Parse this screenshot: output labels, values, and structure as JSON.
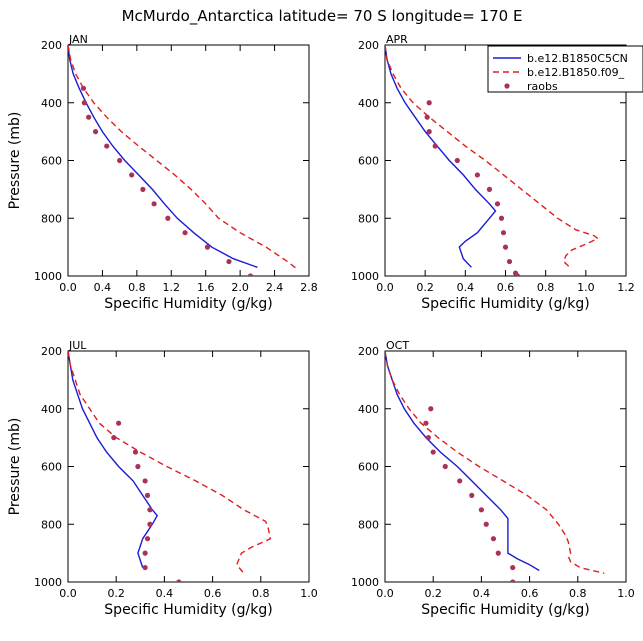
{
  "title": "McMurdo_Antarctica  latitude= 70 S longitude= 170 E",
  "colors": {
    "model1": "#1b1bd6",
    "model2": "#e01e1e",
    "obs": "#a8325a"
  },
  "legend": [
    "b.e12.B1850C5CN",
    "b.e12.B1850.f09_",
    "raobs"
  ],
  "chart_data": [
    {
      "type": "line",
      "month": "JAN",
      "xlabel": "Specific Humidity (g/kg)",
      "ylabel": "Pressure (mb)",
      "xlim": [
        0,
        2.8
      ],
      "ylim": [
        1000,
        200
      ],
      "xticks": [
        "0.0",
        "0.4",
        "0.8",
        "1.2",
        "1.6",
        "2.0",
        "2.4",
        "2.8"
      ],
      "yticks": [
        "200",
        "400",
        "600",
        "800",
        "1000"
      ],
      "series": [
        {
          "name": "b.e12.B1850C5CN",
          "points": [
            [
              0.0,
              200
            ],
            [
              0.02,
              250
            ],
            [
              0.06,
              300
            ],
            [
              0.13,
              350
            ],
            [
              0.21,
              400
            ],
            [
              0.3,
              450
            ],
            [
              0.4,
              500
            ],
            [
              0.52,
              550
            ],
            [
              0.66,
              600
            ],
            [
              0.82,
              650
            ],
            [
              0.98,
              700
            ],
            [
              1.12,
              750
            ],
            [
              1.27,
              800
            ],
            [
              1.46,
              850
            ],
            [
              1.67,
              900
            ],
            [
              1.92,
              940
            ],
            [
              2.2,
              970
            ]
          ]
        },
        {
          "name": "b.e12.B1850.f09_",
          "points": [
            [
              0.0,
              200
            ],
            [
              0.03,
              250
            ],
            [
              0.09,
              300
            ],
            [
              0.18,
              350
            ],
            [
              0.3,
              400
            ],
            [
              0.45,
              450
            ],
            [
              0.62,
              500
            ],
            [
              0.82,
              550
            ],
            [
              1.03,
              600
            ],
            [
              1.24,
              650
            ],
            [
              1.43,
              700
            ],
            [
              1.6,
              750
            ],
            [
              1.75,
              800
            ],
            [
              2.0,
              850
            ],
            [
              2.3,
              900
            ],
            [
              2.55,
              950
            ],
            [
              2.68,
              980
            ]
          ]
        },
        {
          "name": "raobs",
          "points": [
            [
              0.18,
              350
            ],
            [
              0.19,
              400
            ],
            [
              0.24,
              450
            ],
            [
              0.32,
              500
            ],
            [
              0.45,
              550
            ],
            [
              0.6,
              600
            ],
            [
              0.74,
              650
            ],
            [
              0.87,
              700
            ],
            [
              1.0,
              750
            ],
            [
              1.16,
              800
            ],
            [
              1.36,
              850
            ],
            [
              1.62,
              900
            ],
            [
              1.87,
              950
            ],
            [
              2.12,
              1000
            ]
          ]
        }
      ]
    },
    {
      "type": "line",
      "month": "APR",
      "xlabel": "Specific Humidity (g/kg)",
      "ylabel": "",
      "xlim": [
        0,
        1.2
      ],
      "ylim": [
        1000,
        200
      ],
      "xticks": [
        "0.0",
        "0.2",
        "0.4",
        "0.6",
        "0.8",
        "1.0",
        "1.2"
      ],
      "yticks": [
        "200",
        "400",
        "600",
        "800",
        "1000"
      ],
      "series": [
        {
          "name": "b.e12.B1850C5CN",
          "points": [
            [
              0.0,
              200
            ],
            [
              0.01,
              250
            ],
            [
              0.03,
              300
            ],
            [
              0.06,
              350
            ],
            [
              0.1,
              400
            ],
            [
              0.15,
              450
            ],
            [
              0.2,
              500
            ],
            [
              0.26,
              550
            ],
            [
              0.32,
              600
            ],
            [
              0.39,
              650
            ],
            [
              0.45,
              700
            ],
            [
              0.52,
              750
            ],
            [
              0.55,
              775
            ],
            [
              0.52,
              800
            ],
            [
              0.46,
              850
            ],
            [
              0.4,
              880
            ],
            [
              0.37,
              900
            ],
            [
              0.39,
              940
            ],
            [
              0.43,
              970
            ]
          ]
        },
        {
          "name": "b.e12.B1850.f09_",
          "points": [
            [
              0.0,
              200
            ],
            [
              0.01,
              250
            ],
            [
              0.04,
              300
            ],
            [
              0.08,
              350
            ],
            [
              0.14,
              400
            ],
            [
              0.22,
              450
            ],
            [
              0.31,
              500
            ],
            [
              0.4,
              550
            ],
            [
              0.5,
              600
            ],
            [
              0.59,
              650
            ],
            [
              0.68,
              700
            ],
            [
              0.77,
              750
            ],
            [
              0.86,
              800
            ],
            [
              0.95,
              840
            ],
            [
              1.04,
              860
            ],
            [
              1.06,
              870
            ],
            [
              1.0,
              890
            ],
            [
              0.93,
              910
            ],
            [
              0.9,
              930
            ],
            [
              0.89,
              950
            ],
            [
              0.92,
              970
            ]
          ]
        },
        {
          "name": "raobs",
          "points": [
            [
              0.22,
              400
            ],
            [
              0.21,
              450
            ],
            [
              0.22,
              500
            ],
            [
              0.25,
              550
            ],
            [
              0.36,
              600
            ],
            [
              0.46,
              650
            ],
            [
              0.52,
              700
            ],
            [
              0.56,
              750
            ],
            [
              0.58,
              800
            ],
            [
              0.59,
              850
            ],
            [
              0.6,
              900
            ],
            [
              0.62,
              950
            ],
            [
              0.65,
              990
            ],
            [
              0.66,
              1000
            ]
          ]
        }
      ]
    },
    {
      "type": "line",
      "month": "JUL",
      "xlabel": "Specific Humidity (g/kg)",
      "ylabel": "Pressure (mb)",
      "xlim": [
        0,
        1.0
      ],
      "ylim": [
        1000,
        200
      ],
      "xticks": [
        "0.0",
        "0.2",
        "0.4",
        "0.6",
        "0.8",
        "1.0"
      ],
      "yticks": [
        "200",
        "400",
        "600",
        "800",
        "1000"
      ],
      "series": [
        {
          "name": "b.e12.B1850C5CN",
          "points": [
            [
              0.0,
              200
            ],
            [
              0.01,
              250
            ],
            [
              0.02,
              300
            ],
            [
              0.04,
              350
            ],
            [
              0.06,
              400
            ],
            [
              0.09,
              450
            ],
            [
              0.12,
              500
            ],
            [
              0.16,
              550
            ],
            [
              0.21,
              600
            ],
            [
              0.27,
              650
            ],
            [
              0.31,
              700
            ],
            [
              0.35,
              750
            ],
            [
              0.37,
              770
            ],
            [
              0.35,
              800
            ],
            [
              0.31,
              850
            ],
            [
              0.29,
              900
            ],
            [
              0.31,
              950
            ]
          ]
        },
        {
          "name": "b.e12.B1850.f09_",
          "points": [
            [
              0.0,
              200
            ],
            [
              0.01,
              250
            ],
            [
              0.03,
              300
            ],
            [
              0.05,
              350
            ],
            [
              0.09,
              400
            ],
            [
              0.13,
              450
            ],
            [
              0.2,
              500
            ],
            [
              0.3,
              550
            ],
            [
              0.41,
              600
            ],
            [
              0.53,
              650
            ],
            [
              0.64,
              700
            ],
            [
              0.73,
              750
            ],
            [
              0.82,
              790
            ],
            [
              0.83,
              810
            ],
            [
              0.84,
              850
            ],
            [
              0.76,
              880
            ],
            [
              0.72,
              900
            ],
            [
              0.7,
              940
            ],
            [
              0.72,
              960
            ],
            [
              0.73,
              970
            ]
          ]
        },
        {
          "name": "raobs",
          "points": [
            [
              0.21,
              450
            ],
            [
              0.19,
              500
            ],
            [
              0.28,
              550
            ],
            [
              0.29,
              600
            ],
            [
              0.32,
              650
            ],
            [
              0.33,
              700
            ],
            [
              0.34,
              750
            ],
            [
              0.34,
              800
            ],
            [
              0.33,
              850
            ],
            [
              0.32,
              900
            ],
            [
              0.32,
              950
            ],
            [
              0.46,
              1000
            ]
          ]
        }
      ]
    },
    {
      "type": "line",
      "month": "OCT",
      "xlabel": "Specific Humidity (g/kg)",
      "ylabel": "",
      "xlim": [
        0,
        1.0
      ],
      "ylim": [
        1000,
        200
      ],
      "xticks": [
        "0.0",
        "0.2",
        "0.4",
        "0.6",
        "0.8",
        "1.0"
      ],
      "yticks": [
        "200",
        "400",
        "600",
        "800",
        "1000"
      ],
      "series": [
        {
          "name": "b.e12.B1850C5CN",
          "points": [
            [
              0.0,
              200
            ],
            [
              0.01,
              250
            ],
            [
              0.03,
              300
            ],
            [
              0.05,
              350
            ],
            [
              0.08,
              400
            ],
            [
              0.12,
              450
            ],
            [
              0.17,
              500
            ],
            [
              0.23,
              550
            ],
            [
              0.3,
              600
            ],
            [
              0.36,
              650
            ],
            [
              0.42,
              700
            ],
            [
              0.48,
              750
            ],
            [
              0.51,
              780
            ],
            [
              0.51,
              800
            ],
            [
              0.51,
              850
            ],
            [
              0.51,
              900
            ],
            [
              0.55,
              920
            ],
            [
              0.6,
              940
            ],
            [
              0.64,
              960
            ]
          ]
        },
        {
          "name": "b.e12.B1850.f09_",
          "points": [
            [
              0.0,
              200
            ],
            [
              0.01,
              250
            ],
            [
              0.03,
              300
            ],
            [
              0.06,
              350
            ],
            [
              0.1,
              400
            ],
            [
              0.15,
              450
            ],
            [
              0.22,
              500
            ],
            [
              0.3,
              550
            ],
            [
              0.39,
              600
            ],
            [
              0.49,
              650
            ],
            [
              0.59,
              700
            ],
            [
              0.67,
              750
            ],
            [
              0.72,
              800
            ],
            [
              0.75,
              840
            ],
            [
              0.76,
              860
            ],
            [
              0.77,
              900
            ],
            [
              0.76,
              910
            ],
            [
              0.77,
              930
            ],
            [
              0.81,
              950
            ],
            [
              0.91,
              970
            ]
          ]
        },
        {
          "name": "raobs",
          "points": [
            [
              0.19,
              400
            ],
            [
              0.17,
              450
            ],
            [
              0.18,
              500
            ],
            [
              0.2,
              550
            ],
            [
              0.25,
              600
            ],
            [
              0.31,
              650
            ],
            [
              0.36,
              700
            ],
            [
              0.4,
              750
            ],
            [
              0.42,
              800
            ],
            [
              0.45,
              850
            ],
            [
              0.47,
              900
            ],
            [
              0.53,
              950
            ],
            [
              0.53,
              1000
            ]
          ]
        }
      ]
    }
  ]
}
